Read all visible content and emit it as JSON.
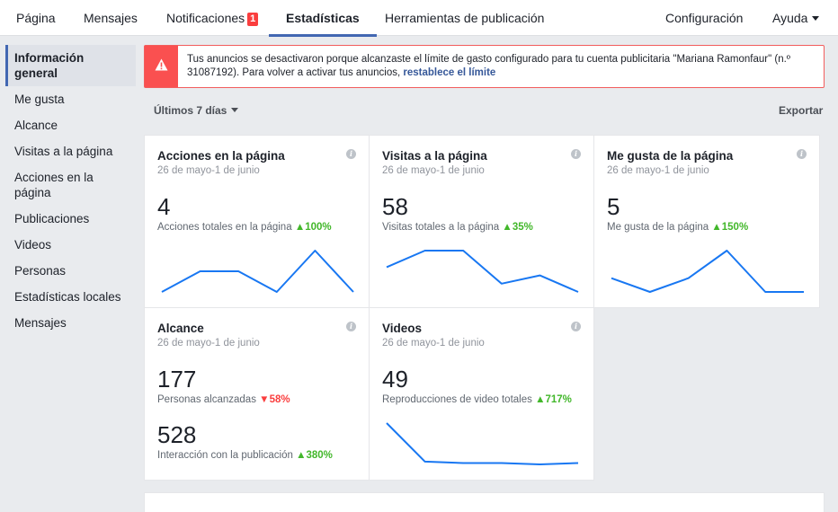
{
  "nav": {
    "tabs": [
      {
        "label": "Página"
      },
      {
        "label": "Mensajes"
      },
      {
        "label": "Notificaciones",
        "badge": "1"
      },
      {
        "label": "Estadísticas"
      },
      {
        "label": "Herramientas de publicación"
      }
    ],
    "settings": "Configuración",
    "help": "Ayuda"
  },
  "sidebar": {
    "items": [
      {
        "label": "Información general"
      },
      {
        "label": "Me gusta"
      },
      {
        "label": "Alcance"
      },
      {
        "label": "Visitas a la página"
      },
      {
        "label": "Acciones en la página"
      },
      {
        "label": "Publicaciones"
      },
      {
        "label": "Videos"
      },
      {
        "label": "Personas"
      },
      {
        "label": "Estadísticas locales"
      },
      {
        "label": "Mensajes"
      }
    ]
  },
  "alert": {
    "text": "Tus anuncios se desactivaron porque alcanzaste el límite de gasto configurado para tu cuenta publicitaria \"Mariana Ramonfaur\" (n.º 31087192). Para volver a activar tus anuncios, ",
    "link": "restablece el límite",
    "icon": "warning-icon",
    "color": "#fa5050"
  },
  "controls": {
    "range": "Últimos 7 días",
    "export": "Exportar"
  },
  "colors": {
    "accent": "#4267b2",
    "line": "#1877f2",
    "up": "#42b72a",
    "down": "#fa3e3e"
  },
  "cards": [
    {
      "title": "Acciones en la página",
      "date": "26 de mayo-1 de junio",
      "value": "4",
      "label": "Acciones totales en la página",
      "delta": "100%",
      "trend": "up",
      "series": [
        1,
        2,
        2,
        1,
        3,
        1
      ]
    },
    {
      "title": "Visitas a la página",
      "date": "26 de mayo-1 de junio",
      "value": "58",
      "label": "Visitas totales a la página",
      "delta": "35%",
      "trend": "up",
      "series": [
        9,
        11,
        11,
        7,
        8,
        6
      ]
    },
    {
      "title": "Me gusta de la página",
      "date": "26 de mayo-1 de junio",
      "value": "5",
      "label": "Me gusta de la página",
      "delta": "150%",
      "trend": "up",
      "series": [
        2,
        1,
        2,
        4,
        1,
        1
      ]
    },
    {
      "title": "Alcance",
      "date": "26 de mayo-1 de junio",
      "value": "177",
      "label": "Personas alcanzadas",
      "delta": "58%",
      "trend": "down",
      "value2": "528",
      "label2": "Interacción con la publicación",
      "delta2": "380%",
      "trend2": "up"
    },
    {
      "title": "Videos",
      "date": "26 de mayo-1 de junio",
      "value": "49",
      "label": "Reproducciones de video totales",
      "delta": "717%",
      "trend": "up",
      "series": [
        30,
        2,
        1,
        1,
        0,
        1
      ]
    }
  ]
}
